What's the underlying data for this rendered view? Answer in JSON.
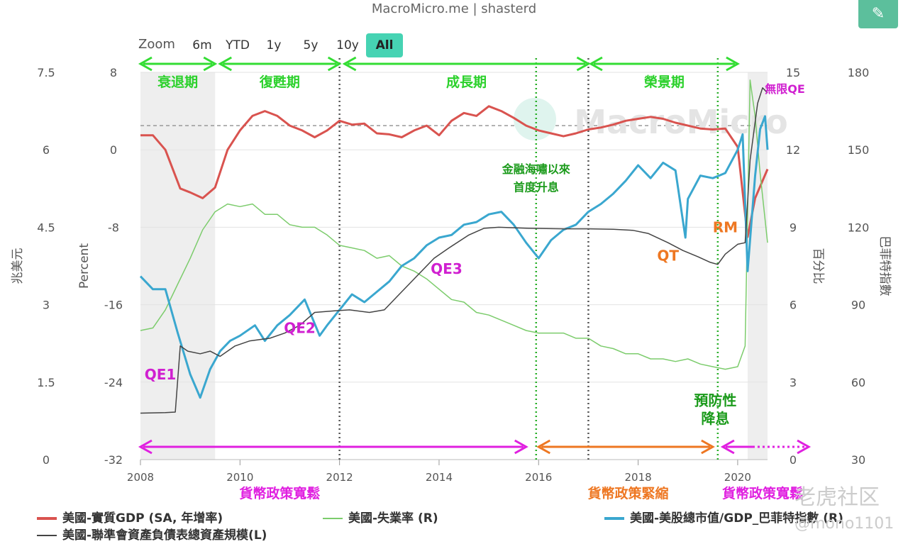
{
  "source": "MacroMicro.me | shasterd",
  "zoom": {
    "label": "Zoom",
    "buttons": [
      "6m",
      "YTD",
      "1y",
      "5y",
      "10y",
      "All"
    ],
    "active": "All"
  },
  "edit_icon": "pencil-icon",
  "legend": [
    {
      "label": "美國-實質GDP (SA, 年增率)",
      "color": "#d9534f"
    },
    {
      "label": "美國-失業率 (R)",
      "color": "#7ccc6c"
    },
    {
      "label": "美國-美股總市值/GDP_巴菲特指數 (R)",
      "color": "#3aa7cf"
    },
    {
      "label": "美國-聯準會資產負債表總資產規模(L)",
      "color": "#444444"
    }
  ],
  "watermark": "MacroMicro",
  "corner_watermark": {
    "line1": "老虎社区",
    "line2": "@mono1101"
  },
  "chart_data": {
    "type": "line",
    "x_range": [
      2008,
      2020.6
    ],
    "x_ticks": [
      "2008",
      "2010",
      "2012",
      "2014",
      "2016",
      "2018",
      "2020"
    ],
    "axes": {
      "left_outer": {
        "label": "兆美元",
        "ticks": [
          "0",
          "1.5",
          "3",
          "4.5",
          "6",
          "7.5"
        ],
        "range": [
          0,
          7.5
        ]
      },
      "left_inner": {
        "label": "Percent",
        "ticks": [
          "-32",
          "-24",
          "-16",
          "-8",
          "0",
          "8"
        ],
        "range": [
          -32,
          8
        ]
      },
      "right_inner": {
        "label": "百分比",
        "ticks": [
          "0",
          "3",
          "6",
          "9",
          "12",
          "15"
        ],
        "range": [
          0,
          15
        ]
      },
      "right_outer": {
        "label": "巴菲特指數",
        "ticks": [
          "30",
          "60",
          "90",
          "120",
          "150",
          "180"
        ],
        "range": [
          30,
          180
        ]
      }
    },
    "reference_line": {
      "axis": "left_inner",
      "value": 2.5
    },
    "shaded_regions": [
      [
        2008.0,
        2009.5
      ],
      [
        2020.2,
        2020.6
      ]
    ],
    "dividers": [
      {
        "x": 2012.0,
        "style": "dotted",
        "color": "#555555"
      },
      {
        "x": 2017.0,
        "style": "dotted",
        "color": "#555555"
      },
      {
        "x": 2015.95,
        "style": "dotted",
        "color": "#2bb02b"
      },
      {
        "x": 2019.6,
        "style": "dotted",
        "color": "#2bb02b"
      }
    ],
    "phases": [
      {
        "label": "衰退期",
        "x0": 2008.0,
        "x1": 2009.5
      },
      {
        "label": "復甦期",
        "x0": 2009.6,
        "x1": 2012.0
      },
      {
        "label": "成長期",
        "x0": 2012.1,
        "x1": 2017.0
      },
      {
        "label": "榮景期",
        "x0": 2017.05,
        "x1": 2020.0
      }
    ],
    "policy_arrows": [
      {
        "label": "貨幣政策寬鬆",
        "x0": 2008.0,
        "x1": 2015.75,
        "color": "#e020e0",
        "label_x": 2010.8
      },
      {
        "label": "貨幣政策緊縮",
        "x0": 2016.0,
        "x1": 2019.5,
        "color": "#ee7722",
        "label_x": 2017.8
      },
      {
        "label": "貨幣政策寬鬆",
        "x0": 2019.7,
        "x1": 2021.4,
        "color": "#e020e0",
        "label_x": 2020.5
      }
    ],
    "annotations": [
      {
        "text": "QE1",
        "x": 2008.4,
        "y": 1.55,
        "color": "#d020d0"
      },
      {
        "text": "QE2",
        "x": 2011.2,
        "y": 2.45,
        "color": "#d020d0"
      },
      {
        "text": "QE3",
        "x": 2014.15,
        "y": 3.6,
        "color": "#d020d0"
      },
      {
        "text": "QT",
        "x": 2018.6,
        "y": 3.85,
        "color": "#ee7722"
      },
      {
        "text": "RM",
        "x": 2019.75,
        "y": 4.4,
        "color": "#ee7722"
      },
      {
        "text": "無限QE",
        "x": 2020.95,
        "y": 7.1,
        "color": "#d020d0"
      },
      {
        "text": "金融海嘯以來",
        "x": 2015.95,
        "y": 5.55,
        "color": "#1a9a1a"
      },
      {
        "text": "首度升息",
        "x": 2015.95,
        "y": 5.2,
        "color": "#1a9a1a"
      },
      {
        "text": "預防性",
        "x": 2019.55,
        "y": 1.05,
        "color": "#1a9a1a"
      },
      {
        "text": "降息",
        "x": 2019.55,
        "y": 0.7,
        "color": "#1a9a1a"
      }
    ],
    "series": [
      {
        "name": "美國-實質GDP (SA, 年增率)",
        "axis": "left_inner",
        "color": "#d9534f",
        "points": [
          [
            2008.0,
            1.5
          ],
          [
            2008.25,
            1.5
          ],
          [
            2008.5,
            0.0
          ],
          [
            2008.8,
            -4.0
          ],
          [
            2009.0,
            -4.4
          ],
          [
            2009.25,
            -5.0
          ],
          [
            2009.5,
            -3.9
          ],
          [
            2009.75,
            0.0
          ],
          [
            2010.0,
            2.0
          ],
          [
            2010.25,
            3.5
          ],
          [
            2010.5,
            4.0
          ],
          [
            2010.75,
            3.5
          ],
          [
            2011.0,
            2.5
          ],
          [
            2011.25,
            2.0
          ],
          [
            2011.5,
            1.3
          ],
          [
            2011.75,
            2.0
          ],
          [
            2012.0,
            3.0
          ],
          [
            2012.25,
            2.6
          ],
          [
            2012.5,
            2.7
          ],
          [
            2012.75,
            1.7
          ],
          [
            2013.0,
            1.6
          ],
          [
            2013.25,
            1.3
          ],
          [
            2013.5,
            2.0
          ],
          [
            2013.75,
            2.5
          ],
          [
            2014.0,
            1.5
          ],
          [
            2014.25,
            3.0
          ],
          [
            2014.5,
            3.8
          ],
          [
            2014.75,
            3.5
          ],
          [
            2015.0,
            4.5
          ],
          [
            2015.25,
            4.0
          ],
          [
            2015.5,
            3.3
          ],
          [
            2015.75,
            2.5
          ],
          [
            2016.0,
            2.0
          ],
          [
            2016.25,
            1.7
          ],
          [
            2016.5,
            1.4
          ],
          [
            2016.75,
            1.7
          ],
          [
            2017.0,
            2.1
          ],
          [
            2017.25,
            2.3
          ],
          [
            2017.5,
            2.6
          ],
          [
            2017.75,
            3.0
          ],
          [
            2018.0,
            3.2
          ],
          [
            2018.25,
            3.4
          ],
          [
            2018.5,
            3.2
          ],
          [
            2018.75,
            2.8
          ],
          [
            2019.0,
            2.5
          ],
          [
            2019.25,
            2.2
          ],
          [
            2019.5,
            2.1
          ],
          [
            2019.75,
            2.2
          ],
          [
            2020.0,
            0.3
          ],
          [
            2020.2,
            -9.0
          ],
          [
            2020.35,
            -5.0
          ],
          [
            2020.6,
            -2.0
          ]
        ]
      },
      {
        "name": "美國-失業率 (R)",
        "axis": "right_inner",
        "color": "#7ccc6c",
        "points": [
          [
            2008.0,
            5.0
          ],
          [
            2008.25,
            5.1
          ],
          [
            2008.5,
            5.8
          ],
          [
            2008.75,
            6.8
          ],
          [
            2009.0,
            7.8
          ],
          [
            2009.25,
            8.9
          ],
          [
            2009.5,
            9.6
          ],
          [
            2009.75,
            9.9
          ],
          [
            2010.0,
            9.8
          ],
          [
            2010.25,
            9.9
          ],
          [
            2010.5,
            9.5
          ],
          [
            2010.75,
            9.5
          ],
          [
            2011.0,
            9.1
          ],
          [
            2011.25,
            9.0
          ],
          [
            2011.5,
            9.0
          ],
          [
            2011.75,
            8.7
          ],
          [
            2012.0,
            8.3
          ],
          [
            2012.25,
            8.2
          ],
          [
            2012.5,
            8.1
          ],
          [
            2012.75,
            7.8
          ],
          [
            2013.0,
            7.9
          ],
          [
            2013.25,
            7.5
          ],
          [
            2013.5,
            7.3
          ],
          [
            2013.75,
            7.0
          ],
          [
            2014.0,
            6.6
          ],
          [
            2014.25,
            6.2
          ],
          [
            2014.5,
            6.1
          ],
          [
            2014.75,
            5.7
          ],
          [
            2015.0,
            5.6
          ],
          [
            2015.25,
            5.4
          ],
          [
            2015.5,
            5.2
          ],
          [
            2015.75,
            5.0
          ],
          [
            2016.0,
            4.9
          ],
          [
            2016.25,
            4.9
          ],
          [
            2016.5,
            4.9
          ],
          [
            2016.75,
            4.7
          ],
          [
            2017.0,
            4.7
          ],
          [
            2017.25,
            4.4
          ],
          [
            2017.5,
            4.3
          ],
          [
            2017.75,
            4.1
          ],
          [
            2018.0,
            4.1
          ],
          [
            2018.25,
            3.9
          ],
          [
            2018.5,
            3.9
          ],
          [
            2018.75,
            3.8
          ],
          [
            2019.0,
            3.9
          ],
          [
            2019.25,
            3.7
          ],
          [
            2019.5,
            3.6
          ],
          [
            2019.75,
            3.5
          ],
          [
            2020.0,
            3.6
          ],
          [
            2020.15,
            4.4
          ],
          [
            2020.25,
            14.7
          ],
          [
            2020.35,
            13.3
          ],
          [
            2020.45,
            11.1
          ],
          [
            2020.6,
            8.4
          ]
        ]
      },
      {
        "name": "美國-美股總市值/GDP_巴菲特指數 (R)",
        "axis": "right_outer",
        "color": "#3aa7cf",
        "points": [
          [
            2008.0,
            101
          ],
          [
            2008.25,
            96
          ],
          [
            2008.5,
            96
          ],
          [
            2008.75,
            79
          ],
          [
            2009.0,
            63
          ],
          [
            2009.2,
            54
          ],
          [
            2009.4,
            65
          ],
          [
            2009.6,
            72
          ],
          [
            2009.8,
            76
          ],
          [
            2010.0,
            78
          ],
          [
            2010.3,
            82
          ],
          [
            2010.5,
            76
          ],
          [
            2010.75,
            82
          ],
          [
            2011.0,
            86
          ],
          [
            2011.3,
            92
          ],
          [
            2011.6,
            78
          ],
          [
            2011.75,
            82
          ],
          [
            2012.0,
            88
          ],
          [
            2012.25,
            94
          ],
          [
            2012.5,
            91
          ],
          [
            2012.75,
            95
          ],
          [
            2013.0,
            99
          ],
          [
            2013.25,
            105
          ],
          [
            2013.5,
            108
          ],
          [
            2013.75,
            113
          ],
          [
            2014.0,
            116
          ],
          [
            2014.25,
            117
          ],
          [
            2014.5,
            121
          ],
          [
            2014.75,
            122
          ],
          [
            2015.0,
            125
          ],
          [
            2015.25,
            126
          ],
          [
            2015.5,
            121
          ],
          [
            2015.75,
            114
          ],
          [
            2016.0,
            108
          ],
          [
            2016.25,
            115
          ],
          [
            2016.5,
            119
          ],
          [
            2016.75,
            121
          ],
          [
            2017.0,
            126
          ],
          [
            2017.25,
            129
          ],
          [
            2017.5,
            133
          ],
          [
            2017.75,
            138
          ],
          [
            2018.0,
            144
          ],
          [
            2018.25,
            139
          ],
          [
            2018.5,
            145
          ],
          [
            2018.75,
            142
          ],
          [
            2018.95,
            116
          ],
          [
            2019.0,
            131
          ],
          [
            2019.25,
            140
          ],
          [
            2019.5,
            139
          ],
          [
            2019.75,
            141
          ],
          [
            2020.0,
            150
          ],
          [
            2020.1,
            156
          ],
          [
            2020.2,
            103
          ],
          [
            2020.35,
            140
          ],
          [
            2020.45,
            158
          ],
          [
            2020.55,
            163
          ],
          [
            2020.6,
            150
          ]
        ]
      },
      {
        "name": "美國-聯準會資產負債表總資產規模(L)",
        "axis": "left_outer",
        "color": "#444444",
        "points": [
          [
            2008.0,
            0.9
          ],
          [
            2008.5,
            0.91
          ],
          [
            2008.7,
            0.92
          ],
          [
            2008.8,
            2.2
          ],
          [
            2008.95,
            2.1
          ],
          [
            2009.2,
            2.05
          ],
          [
            2009.4,
            2.1
          ],
          [
            2009.6,
            2.0
          ],
          [
            2009.9,
            2.2
          ],
          [
            2010.2,
            2.3
          ],
          [
            2010.6,
            2.35
          ],
          [
            2010.9,
            2.45
          ],
          [
            2011.2,
            2.6
          ],
          [
            2011.5,
            2.85
          ],
          [
            2011.9,
            2.88
          ],
          [
            2012.2,
            2.9
          ],
          [
            2012.6,
            2.85
          ],
          [
            2012.9,
            2.9
          ],
          [
            2013.2,
            3.2
          ],
          [
            2013.6,
            3.6
          ],
          [
            2013.9,
            3.9
          ],
          [
            2014.2,
            4.1
          ],
          [
            2014.6,
            4.35
          ],
          [
            2014.9,
            4.48
          ],
          [
            2015.2,
            4.5
          ],
          [
            2015.8,
            4.48
          ],
          [
            2016.5,
            4.47
          ],
          [
            2017.0,
            4.47
          ],
          [
            2017.5,
            4.46
          ],
          [
            2017.9,
            4.44
          ],
          [
            2018.2,
            4.38
          ],
          [
            2018.6,
            4.2
          ],
          [
            2018.9,
            4.05
          ],
          [
            2019.2,
            3.93
          ],
          [
            2019.45,
            3.82
          ],
          [
            2019.6,
            3.78
          ],
          [
            2019.75,
            3.98
          ],
          [
            2020.0,
            4.17
          ],
          [
            2020.15,
            4.2
          ],
          [
            2020.25,
            5.8
          ],
          [
            2020.4,
            6.9
          ],
          [
            2020.5,
            7.2
          ],
          [
            2020.6,
            7.1
          ]
        ]
      }
    ]
  }
}
